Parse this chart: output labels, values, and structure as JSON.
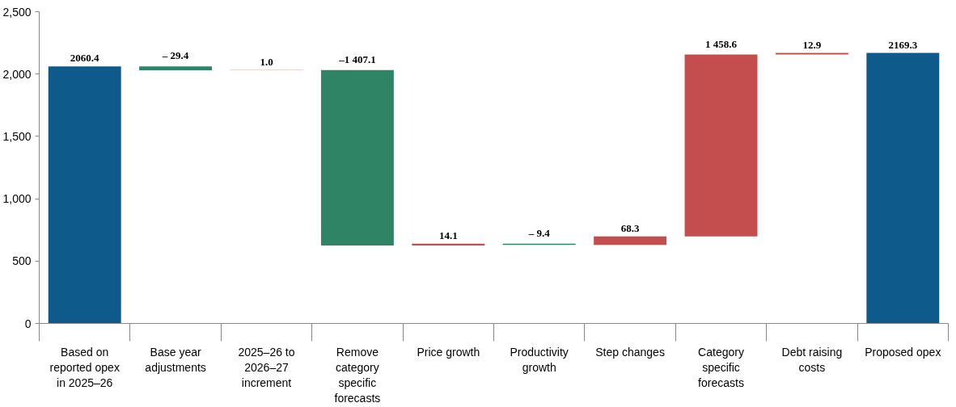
{
  "chart_data": {
    "type": "bar",
    "categories": [
      "Based on reported opex in 2025–26",
      "Base year adjustments",
      "2025–26 to 2026–27 increment",
      "Remove category specific forecasts",
      "Price growth",
      "Productivity growth",
      "Step changes",
      "Category specific forecasts",
      "Debt raising costs",
      "Proposed opex"
    ],
    "values": [
      2060.4,
      -29.4,
      1.0,
      -1407.1,
      14.1,
      -9.4,
      68.3,
      1458.6,
      12.9,
      2169.3
    ],
    "base": [
      0,
      2060.4,
      2031.0,
      2032.0,
      624.9,
      639.0,
      629.6,
      697.9,
      2156.5,
      0
    ],
    "colors": [
      "#0e5a8a",
      "#2e8465",
      "#c44e4e",
      "#2e8465",
      "#c44e4e",
      "#2e8465",
      "#c44e4e",
      "#c44e4e",
      "#c44e4e",
      "#0e5a8a"
    ],
    "value_labels": [
      "2060.4",
      "– 29.4",
      "1.0",
      "–1 407.1",
      "14.1",
      "– 9.4",
      "68.3",
      "1 458.6",
      "12.9",
      "2169.3"
    ],
    "ylim": [
      0,
      2500
    ],
    "yticks": [
      0,
      {
        "value": 500,
        "label": "500"
      },
      {
        "value": 1000,
        "label": "1,000"
      },
      {
        "value": 1500,
        "label": "1,500"
      },
      {
        "value": 2000,
        "label": "2,000"
      },
      {
        "value": 2500,
        "label": "2,500"
      }
    ],
    "grid": false
  }
}
